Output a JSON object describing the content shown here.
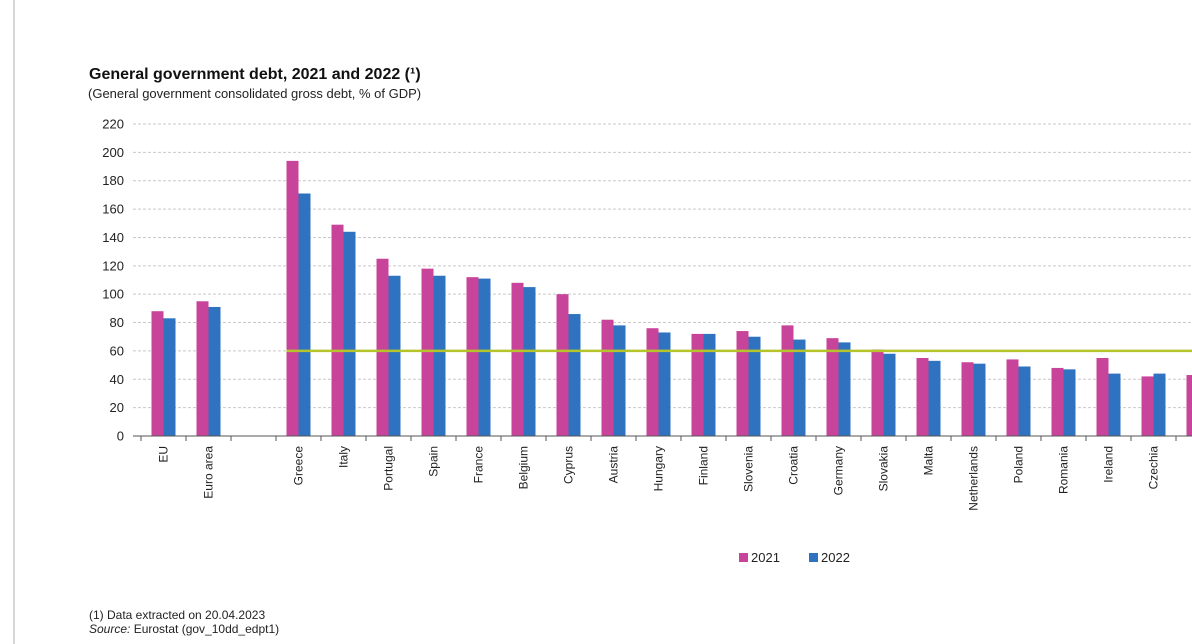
{
  "chart_data": {
    "type": "bar",
    "title": "General government debt, 2021 and 2022 (¹)",
    "subtitle": "(General government  consolidated gross debt, % of GDP)",
    "categories": [
      "EU",
      "Euro area",
      "",
      "Greece",
      "Italy",
      "Portugal",
      "Spain",
      "France",
      "Belgium",
      "Cyprus",
      "Austria",
      "Hungary",
      "Finland",
      "Slovenia",
      "Croatia",
      "Germany",
      "Slovakia",
      "Malta",
      "Netherlands",
      "Poland",
      "Romania",
      "Ireland",
      "Czechia",
      ""
    ],
    "series": [
      {
        "name": "2021",
        "color": "#c8439a",
        "values": [
          88,
          95,
          null,
          194,
          149,
          125,
          118,
          112,
          108,
          100,
          82,
          76,
          72,
          74,
          78,
          69,
          61,
          55,
          52,
          54,
          48,
          55,
          42,
          43
        ]
      },
      {
        "name": "2022",
        "color": "#2f73c0",
        "values": [
          83,
          91,
          null,
          171,
          144,
          113,
          113,
          111,
          105,
          86,
          78,
          73,
          72,
          70,
          68,
          66,
          58,
          53,
          51,
          49,
          47,
          44,
          44,
          null
        ]
      }
    ],
    "reference_line": {
      "value": 60,
      "color": "#b5c42a"
    },
    "ylim": [
      0,
      220
    ],
    "yticks": [
      0,
      20,
      40,
      60,
      80,
      100,
      120,
      140,
      160,
      180,
      200,
      220
    ],
    "grid": true,
    "legend": {
      "placement": "bottom-center",
      "entries": [
        "2021",
        "2022"
      ]
    }
  },
  "footnote": "(1) Data extracted on 20.04.2023",
  "source": {
    "label": "Source:",
    "text": " Eurostat (gov_10dd_edpt1)"
  }
}
